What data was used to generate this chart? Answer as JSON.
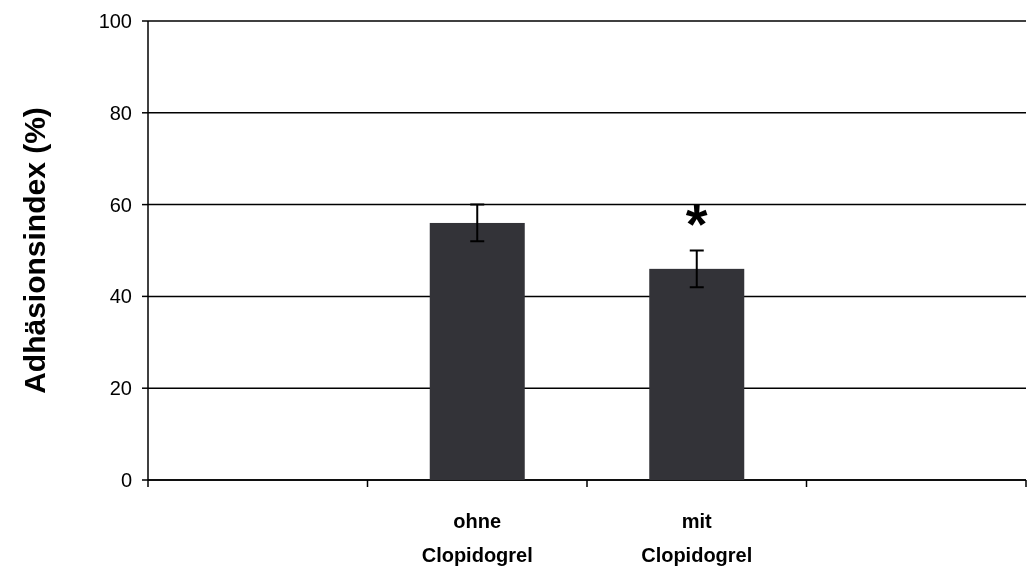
{
  "chart_data": {
    "type": "bar",
    "ylabel": "Adhäsionsindex (%)",
    "categories": [
      null,
      "ohne Clopidogrel",
      "mit Clopidogrel",
      null
    ],
    "values": [
      null,
      56,
      46,
      null
    ],
    "errors": [
      null,
      4,
      4,
      null
    ],
    "color": "#333338",
    "ylim": [
      0,
      100
    ],
    "yticks": [
      0,
      20,
      40,
      60,
      80,
      100
    ],
    "grid": "y",
    "annotations": [
      "*"
    ]
  }
}
